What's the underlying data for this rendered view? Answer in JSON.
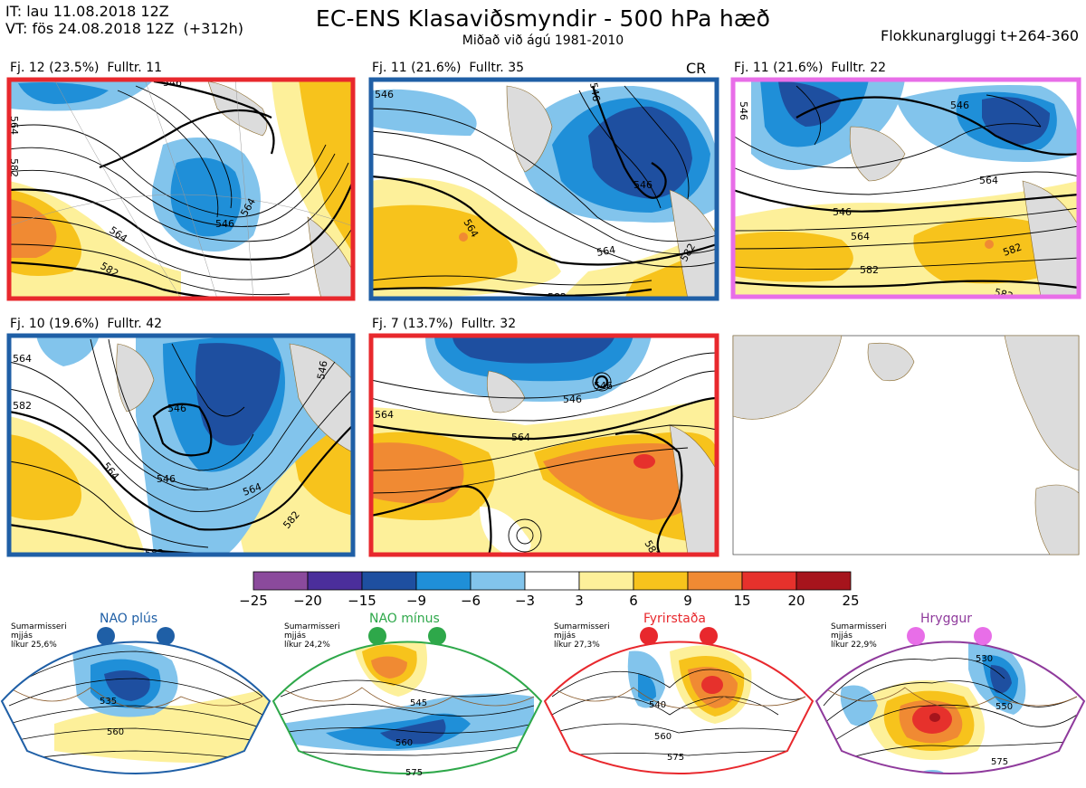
{
  "header": {
    "it_line": "IT: lau 11.08.2018 12Z",
    "vt_line": "VT: fös 24.08.2018 12Z  (+312h)",
    "title": "EC-ENS Klasaviðsmyndir - 500 hPa hæð",
    "subtitle": "Miðað við ágú 1981-2010",
    "window": "Flokkunargluggi t+264-360"
  },
  "panels": [
    {
      "label": "Fj. 12 (23.5%)  Fulltr. 11",
      "frame": "#e8282d",
      "contours": [
        "546",
        "564",
        "564",
        "582",
        "582",
        "546",
        "564"
      ]
    },
    {
      "label": "Fj. 11 (21.6%)  Fulltr. 35",
      "frame": "#1f5fa6",
      "extra": "CR",
      "contours": [
        "546",
        "546",
        "546",
        "564",
        "564",
        "582",
        "582"
      ]
    },
    {
      "label": "Fj. 11 (21.6%)  Fulltr. 22",
      "frame": "#e86ee8",
      "contours": [
        "546",
        "546",
        "564",
        "564",
        "546",
        "582",
        "582",
        "582"
      ]
    },
    {
      "label": "Fj. 10 (19.6%)  Fulltr. 42",
      "frame": "#1f5fa6",
      "contours": [
        "564",
        "582",
        "546",
        "546",
        "546",
        "564",
        "564",
        "582",
        "582"
      ]
    },
    {
      "label": "Fj. 7 (13.7%)  Fulltr. 32",
      "frame": "#e8282d",
      "contours": [
        "564",
        "546",
        "546",
        "564",
        "582"
      ]
    }
  ],
  "colorbar": {
    "colors": [
      "#8b4a9c",
      "#4b2e9b",
      "#1e4fa0",
      "#1f8fd8",
      "#82c4ec",
      "#ffffff",
      "#fdf09a",
      "#f7c31c",
      "#f08a33",
      "#e6312c",
      "#a6141c"
    ],
    "ticks": [
      "−25",
      "−20",
      "−15",
      "−9",
      "−6",
      "−3",
      "3",
      "6",
      "9",
      "15",
      "20",
      "25"
    ]
  },
  "regimes": [
    {
      "name": "NAO plús",
      "season": "Sumarmisseri",
      "mean": "mjjás",
      "prob": "líkur 25,6%",
      "color": "#1f5fa6",
      "contours": [
        "535",
        "560"
      ]
    },
    {
      "name": "NAO mínus",
      "season": "Sumarmisseri",
      "mean": "mjjás",
      "prob": "líkur 24,2%",
      "color": "#2ea84a",
      "contours": [
        "545",
        "560",
        "575"
      ]
    },
    {
      "name": "Fyrirstaða",
      "season": "Sumarmisseri",
      "mean": "mjjás",
      "prob": "líkur 27,3%",
      "color": "#e8282d",
      "contours": [
        "540",
        "560",
        "575"
      ]
    },
    {
      "name": "Hryggur",
      "season": "Sumarmisseri",
      "mean": "mjjás",
      "prob": "líkur 22,9%",
      "color": "#8f3a9c",
      "contours": [
        "530",
        "550",
        "575"
      ]
    }
  ]
}
